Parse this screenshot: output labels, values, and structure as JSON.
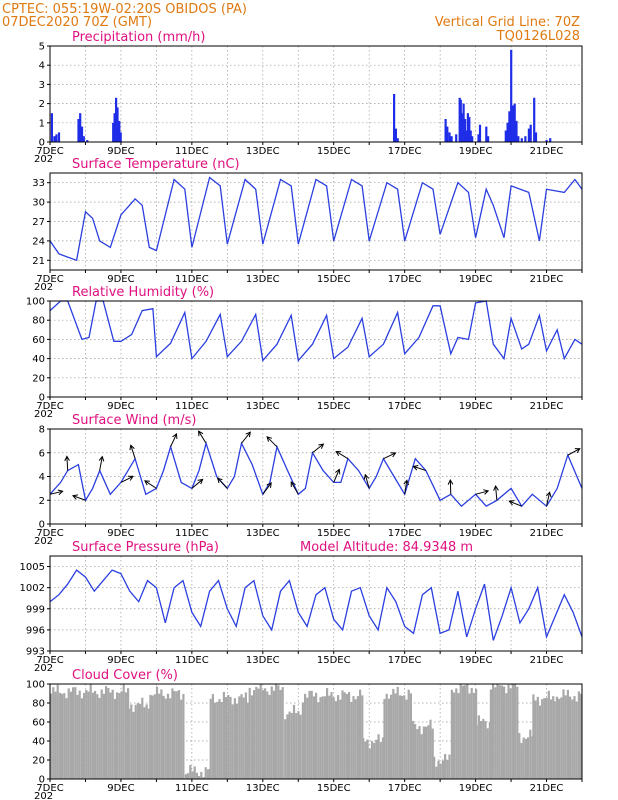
{
  "header": {
    "line1_left": "CPTEC:   055:19W-02:20S   OBIDOS (PA)",
    "line2_left": "07DEC2020 70Z (GMT)",
    "line1_right": "Vertical Grid Line: 70Z",
    "line2_right": "TQ0126L028"
  },
  "colors": {
    "header": "#e07a12",
    "title": "#e0107f",
    "line": "#2b3fe0",
    "bar": "#1f2de8",
    "cloud": "#a8a8a8"
  },
  "x_axis": {
    "start_day": 7,
    "end_day": 22,
    "tick_labels": [
      {
        "day": 7,
        "label": "7DEC"
      },
      {
        "day": 9,
        "label": "9DEC"
      },
      {
        "day": 11,
        "label": "11DEC"
      },
      {
        "day": 13,
        "label": "13DEC"
      },
      {
        "day": 15,
        "label": "15DEC"
      },
      {
        "day": 17,
        "label": "17DEC"
      },
      {
        "day": 19,
        "label": "19DEC"
      },
      {
        "day": 21,
        "label": "21DEC"
      }
    ],
    "year_fragment": "202"
  },
  "panels": {
    "precip": {
      "title": "Precipitation (mm/h)",
      "ylim": [
        0,
        5
      ],
      "yticks": [
        "0",
        "1",
        "2",
        "3",
        "4",
        "5"
      ]
    },
    "temp": {
      "title": "Surface Temperature (nC)",
      "ylim": [
        19.5,
        34.5
      ],
      "yticks": [
        "21",
        "24",
        "27",
        "30",
        "33"
      ]
    },
    "rh": {
      "title": "Relative Humidity (%)",
      "ylim": [
        0,
        100
      ],
      "yticks": [
        "0",
        "20",
        "40",
        "60",
        "80",
        "100"
      ]
    },
    "wind": {
      "title": "Surface Wind (m/s)",
      "ylim": [
        0,
        8
      ],
      "yticks": [
        "0",
        "2",
        "4",
        "6",
        "8"
      ]
    },
    "pres": {
      "title": "Surface Pressure (hPa)",
      "extra": "Model Altitude: 84.9348 m",
      "ylim": [
        993,
        1006.5
      ],
      "yticks": [
        "993",
        "996",
        "999",
        "1002",
        "1005"
      ]
    },
    "cloud": {
      "title": "Cloud Cover (%)",
      "ylim": [
        0,
        100
      ],
      "yticks": [
        "0",
        "20",
        "40",
        "60",
        "80",
        "100"
      ]
    }
  },
  "chart_data": [
    {
      "type": "bar",
      "title": "Precipitation (mm/h)",
      "ylim": [
        0,
        5
      ],
      "x": [
        7.05,
        7.12,
        7.18,
        7.25,
        7.8,
        7.85,
        7.9,
        7.95,
        8.05,
        8.78,
        8.82,
        8.86,
        8.9,
        8.95,
        8.99,
        16.7,
        16.75,
        16.8,
        18.15,
        18.2,
        18.26,
        18.32,
        18.45,
        18.55,
        18.58,
        18.62,
        18.66,
        18.7,
        18.74,
        18.78,
        18.82,
        18.86,
        18.9,
        19.08,
        19.12,
        19.3,
        19.35,
        19.85,
        19.9,
        19.95,
        20.0,
        20.05,
        20.1,
        20.15,
        20.2,
        20.3,
        20.4,
        20.5,
        20.55,
        20.65,
        20.7,
        21.0,
        21.1
      ],
      "y": [
        1.5,
        0.3,
        0.4,
        0.5,
        1.2,
        1.5,
        0.8,
        0.3,
        0.1,
        1.0,
        1.5,
        2.3,
        1.8,
        1.1,
        0.5,
        2.5,
        0.7,
        0.2,
        1.2,
        0.8,
        0.5,
        0.3,
        0.4,
        2.3,
        2.2,
        1.5,
        2.0,
        1.2,
        0.6,
        1.5,
        1.3,
        0.6,
        0.3,
        0.4,
        0.9,
        0.8,
        0.3,
        0.6,
        1.0,
        1.6,
        4.8,
        1.9,
        2.0,
        1.1,
        0.3,
        0.2,
        0.3,
        0.7,
        0.9,
        2.3,
        0.5,
        0.1,
        0.2
      ]
    },
    {
      "type": "line",
      "title": "Surface Temperature (nC)",
      "ylim": [
        19.5,
        34.5
      ],
      "x": [
        7.0,
        7.25,
        7.5,
        7.75,
        8.0,
        8.2,
        8.4,
        8.7,
        9.0,
        9.4,
        9.6,
        9.8,
        10.0,
        10.5,
        10.8,
        11.0,
        11.5,
        11.8,
        12.0,
        12.5,
        12.8,
        13.0,
        13.5,
        13.8,
        14.0,
        14.5,
        14.8,
        15.0,
        15.5,
        15.8,
        16.0,
        16.5,
        16.8,
        17.0,
        17.5,
        17.8,
        18.0,
        18.5,
        18.8,
        19.0,
        19.3,
        19.5,
        19.8,
        20.0,
        20.5,
        20.8,
        21.0,
        21.5,
        21.8,
        22.0
      ],
      "y": [
        24.0,
        22.0,
        21.5,
        21.0,
        28.5,
        27.5,
        24.0,
        23.0,
        28.0,
        30.5,
        29.5,
        23.0,
        22.5,
        33.5,
        32.0,
        23.0,
        33.8,
        32.5,
        23.5,
        33.5,
        32.0,
        23.5,
        33.5,
        32.5,
        23.5,
        33.5,
        32.5,
        24.0,
        33.5,
        32.5,
        24.0,
        33.0,
        32.0,
        24.0,
        33.0,
        32.0,
        25.0,
        33.0,
        31.5,
        24.5,
        32.0,
        29.5,
        24.5,
        32.5,
        31.5,
        24.0,
        32.0,
        31.5,
        33.5,
        32.0
      ]
    },
    {
      "type": "line",
      "title": "Relative Humidity (%)",
      "ylim": [
        0,
        100
      ],
      "x": [
        7.0,
        7.3,
        7.5,
        7.9,
        8.1,
        8.3,
        8.5,
        8.8,
        9.0,
        9.3,
        9.6,
        9.9,
        10.0,
        10.4,
        10.8,
        11.0,
        11.4,
        11.8,
        12.0,
        12.4,
        12.8,
        13.0,
        13.4,
        13.8,
        14.0,
        14.4,
        14.8,
        15.0,
        15.4,
        15.8,
        16.0,
        16.4,
        16.8,
        17.0,
        17.4,
        17.8,
        18.0,
        18.3,
        18.5,
        18.8,
        19.0,
        19.3,
        19.5,
        19.8,
        20.0,
        20.3,
        20.5,
        20.8,
        21.0,
        21.3,
        21.5,
        21.8,
        22.0
      ],
      "y": [
        90.0,
        100.0,
        100.0,
        60.0,
        62.0,
        100.0,
        100.0,
        58.0,
        58.0,
        65.0,
        90.0,
        92.0,
        42.0,
        56.0,
        88.0,
        40.0,
        58.0,
        86.0,
        42.0,
        58.0,
        86.0,
        38.0,
        55.0,
        85.0,
        38.0,
        55.0,
        85.0,
        40.0,
        52.0,
        82.0,
        42.0,
        55.0,
        88.0,
        45.0,
        62.0,
        95.0,
        95.0,
        45.0,
        62.0,
        60.0,
        98.0,
        100.0,
        55.0,
        40.0,
        82.0,
        50.0,
        55.0,
        85.0,
        48.0,
        70.0,
        40.0,
        60.0,
        55.0
      ]
    },
    {
      "type": "line",
      "title": "Surface Wind (m/s)",
      "ylim": [
        0,
        8
      ],
      "x": [
        7.0,
        7.3,
        7.5,
        7.8,
        8.0,
        8.2,
        8.4,
        8.7,
        9.0,
        9.2,
        9.4,
        9.7,
        10.0,
        10.2,
        10.4,
        10.7,
        11.0,
        11.2,
        11.4,
        11.7,
        12.0,
        12.2,
        12.4,
        12.7,
        13.0,
        13.2,
        13.4,
        13.7,
        14.0,
        14.2,
        14.4,
        14.7,
        15.0,
        15.2,
        15.4,
        15.7,
        16.0,
        16.2,
        16.4,
        16.7,
        17.0,
        17.3,
        17.6,
        18.0,
        18.3,
        18.6,
        19.0,
        19.3,
        19.6,
        20.0,
        20.3,
        20.6,
        21.0,
        21.3,
        21.6,
        22.0
      ],
      "y": [
        2.5,
        3.5,
        4.5,
        5.0,
        2.0,
        3.0,
        4.5,
        2.5,
        3.5,
        4.5,
        5.5,
        2.5,
        3.0,
        4.5,
        6.5,
        3.5,
        3.0,
        4.5,
        6.8,
        4.0,
        3.0,
        4.0,
        6.8,
        5.0,
        2.5,
        3.5,
        6.5,
        4.5,
        2.5,
        3.0,
        6.0,
        4.5,
        3.5,
        3.5,
        5.5,
        4.5,
        3.0,
        4.0,
        5.5,
        4.0,
        2.5,
        5.5,
        4.5,
        2.0,
        2.5,
        1.5,
        2.5,
        1.5,
        2.0,
        3.0,
        1.5,
        2.5,
        1.5,
        3.0,
        5.8,
        3.0
      ]
    },
    {
      "type": "line",
      "title": "Surface Pressure (hPa)",
      "ylim": [
        993,
        1006.5
      ],
      "x": [
        7.0,
        7.25,
        7.5,
        7.75,
        8.0,
        8.25,
        8.5,
        8.75,
        9.0,
        9.25,
        9.5,
        9.75,
        10.0,
        10.25,
        10.5,
        10.75,
        11.0,
        11.25,
        11.5,
        11.75,
        12.0,
        12.25,
        12.5,
        12.75,
        13.0,
        13.25,
        13.5,
        13.75,
        14.0,
        14.25,
        14.5,
        14.75,
        15.0,
        15.25,
        15.5,
        15.75,
        16.0,
        16.25,
        16.5,
        16.75,
        17.0,
        17.25,
        17.5,
        17.75,
        18.0,
        18.25,
        18.5,
        18.75,
        19.0,
        19.25,
        19.5,
        19.75,
        20.0,
        20.25,
        20.5,
        20.75,
        21.0,
        21.25,
        21.5,
        21.75,
        22.0
      ],
      "y": [
        1000.0,
        1001.0,
        1002.5,
        1004.5,
        1003.5,
        1001.5,
        1003.0,
        1004.5,
        1004.0,
        1001.5,
        1000.0,
        1003.0,
        1002.0,
        997.0,
        1002.0,
        1003.0,
        998.5,
        996.5,
        1001.5,
        1003.0,
        999.0,
        996.5,
        1002.0,
        1003.0,
        998.0,
        996.0,
        1001.5,
        1003.0,
        998.5,
        996.5,
        1001.0,
        1002.0,
        997.5,
        996.0,
        1001.5,
        1002.0,
        998.0,
        996.0,
        1002.0,
        1000.0,
        996.5,
        995.5,
        1001.0,
        1002.0,
        995.5,
        996.0,
        1001.5,
        995.0,
        999.0,
        1002.5,
        994.5,
        998.0,
        1002.0,
        997.0,
        999.0,
        1002.0,
        995.0,
        998.0,
        1001.0,
        998.5,
        995.0
      ]
    },
    {
      "type": "bar",
      "title": "Cloud Cover (%)",
      "ylim": [
        0,
        100
      ],
      "segments": [
        {
          "x0": 7.0,
          "x1": 9.2,
          "pct": 92
        },
        {
          "x0": 9.2,
          "x1": 9.8,
          "pct": 78
        },
        {
          "x0": 9.8,
          "x1": 10.8,
          "pct": 90
        },
        {
          "x0": 10.8,
          "x1": 11.5,
          "pct": 8
        },
        {
          "x0": 11.5,
          "x1": 12.6,
          "pct": 85
        },
        {
          "x0": 12.6,
          "x1": 13.6,
          "pct": 95
        },
        {
          "x0": 13.6,
          "x1": 14.1,
          "pct": 70
        },
        {
          "x0": 14.1,
          "x1": 15.8,
          "pct": 88
        },
        {
          "x0": 15.8,
          "x1": 16.4,
          "pct": 40
        },
        {
          "x0": 16.4,
          "x1": 17.2,
          "pct": 90
        },
        {
          "x0": 17.2,
          "x1": 17.8,
          "pct": 55
        },
        {
          "x0": 17.8,
          "x1": 18.3,
          "pct": 20
        },
        {
          "x0": 18.3,
          "x1": 19.0,
          "pct": 96
        },
        {
          "x0": 19.0,
          "x1": 19.4,
          "pct": 60
        },
        {
          "x0": 19.4,
          "x1": 20.2,
          "pct": 98
        },
        {
          "x0": 20.2,
          "x1": 20.6,
          "pct": 45
        },
        {
          "x0": 20.6,
          "x1": 21.2,
          "pct": 85
        },
        {
          "x0": 21.2,
          "x1": 22.0,
          "pct": 88
        }
      ]
    }
  ]
}
